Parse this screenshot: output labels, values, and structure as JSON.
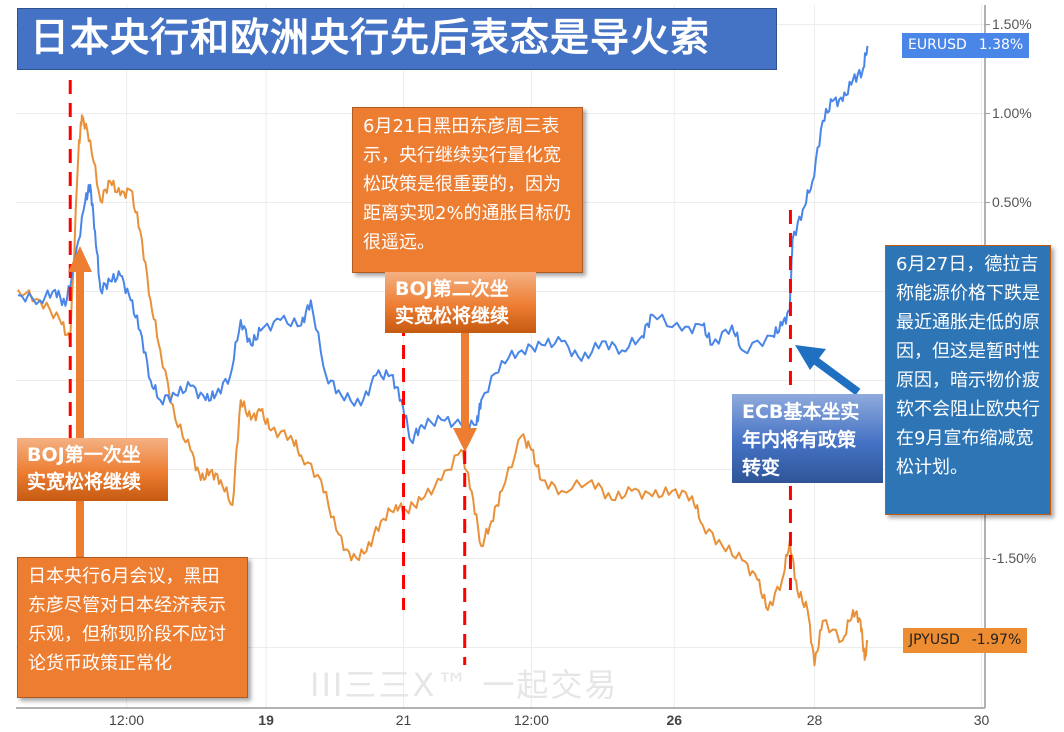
{
  "title": "日本央行和欧洲央行先后表态是导火索",
  "colors": {
    "eurusd": "#4A86E8",
    "jpyusd": "#E8913A",
    "marker": "#FF0000",
    "orange_box": "#ED7D31",
    "blue_box": "#2E75B6",
    "title_bg": "#4472C4"
  },
  "watermark": {
    "logo": "III三三X™",
    "text": "一起交易"
  },
  "annotations": {
    "boj_meeting": "日本央行6月会议，黑田东彦尽管对日本经济表示乐观，但称现阶段不应讨论货币政策正常化",
    "boj_first": "BOJ第一次坐实宽松将继续",
    "kuroda_june21": "6月21日黑田东彦周三表示，央行继续实行量化宽松政策是很重要的，因为距离实现2%的通胀目标仍很遥远。",
    "boj_second": "BOJ第二次坐实宽松将继续",
    "ecb_label": "ECB基本坐实年内将有政策转变",
    "draghi_june27": "6月27日，德拉吉称能源价格下跌是最近通胀走低的原因，但这是暂时性原因，暗示物价疲软不会阻止欧央行在9月宣布缩减宽松计划。"
  },
  "chart_data": {
    "type": "line",
    "title": "日本央行和欧洲央行先后表态是导火索",
    "xlabel": "",
    "ylabel": "",
    "xlim": [
      0,
      14.1
    ],
    "ylim": [
      -2.34,
      1.61
    ],
    "grid": true,
    "x_ticks": [
      {
        "label": "12:00",
        "t": 1.58,
        "bold": false
      },
      {
        "label": "19",
        "t": 3.61,
        "bold": true
      },
      {
        "label": "21",
        "t": 5.61,
        "bold": false
      },
      {
        "label": "12:00",
        "t": 7.47,
        "bold": false
      },
      {
        "label": "26",
        "t": 9.55,
        "bold": true
      },
      {
        "label": "28",
        "t": 11.59,
        "bold": false
      },
      {
        "label": "30",
        "t": 14.02,
        "bold": false
      }
    ],
    "y_gridlines": [
      1.5,
      1.0,
      0.5,
      0.0,
      -0.5,
      -1.0,
      -1.5,
      -2.0
    ],
    "y_tick_labels": [
      {
        "label": "1.50%",
        "v": 1.5
      },
      {
        "label": "1.00%",
        "v": 1.0
      },
      {
        "label": "0.50%",
        "v": 0.5
      },
      {
        "label": "-1.50%",
        "v": -1.5
      }
    ],
    "event_markers_t": [
      0.76,
      5.61,
      6.5,
      11.24
    ],
    "series": [
      {
        "name": "EURUSD",
        "last_label": "1.38%",
        "last": 1.38,
        "t": [
          0,
          0.32,
          0.54,
          0.69,
          0.83,
          0.98,
          1.05,
          1.12,
          1.2,
          1.34,
          1.49,
          1.64,
          1.78,
          1.93,
          2.07,
          2.29,
          2.51,
          2.73,
          2.88,
          3.09,
          3.24,
          3.39,
          3.53,
          3.82,
          4.12,
          4.26,
          4.48,
          4.7,
          4.99,
          5.21,
          5.43,
          5.58,
          5.72,
          5.87,
          6.16,
          6.45,
          6.67,
          6.74,
          7.04,
          7.33,
          7.62,
          7.91,
          8.2,
          8.5,
          8.79,
          9.08,
          9.23,
          9.66,
          9.96,
          10.1,
          10.39,
          10.54,
          10.98,
          11.12,
          11.23,
          11.27,
          11.42,
          11.56,
          11.71,
          11.85,
          12.0,
          12.15,
          12.29,
          12.36
        ],
        "v": [
          -0.02,
          -0.05,
          0.01,
          -0.08,
          0.17,
          0.51,
          0.6,
          0.34,
          0.01,
          0.06,
          0.09,
          -0.05,
          -0.22,
          -0.5,
          -0.61,
          -0.58,
          -0.53,
          -0.61,
          -0.58,
          -0.47,
          -0.16,
          -0.3,
          -0.22,
          -0.16,
          -0.19,
          -0.05,
          -0.47,
          -0.58,
          -0.64,
          -0.47,
          -0.47,
          -0.61,
          -0.84,
          -0.75,
          -0.72,
          -0.75,
          -0.75,
          -0.61,
          -0.39,
          -0.33,
          -0.3,
          -0.28,
          -0.39,
          -0.28,
          -0.33,
          -0.25,
          -0.13,
          -0.22,
          -0.19,
          -0.3,
          -0.19,
          -0.33,
          -0.25,
          -0.19,
          -0.11,
          0.29,
          0.46,
          0.62,
          0.96,
          1.07,
          1.07,
          1.19,
          1.24,
          1.38
        ]
      },
      {
        "name": "JPYUSD",
        "last_label": "-1.97%",
        "last": -1.97,
        "t": [
          0,
          0.32,
          0.61,
          0.76,
          0.88,
          0.93,
          1.05,
          1.2,
          1.34,
          1.49,
          1.64,
          1.78,
          1.93,
          2.07,
          2.29,
          2.51,
          2.66,
          2.8,
          2.95,
          3.12,
          3.24,
          3.39,
          3.53,
          3.68,
          3.97,
          4.12,
          4.41,
          4.63,
          4.85,
          5.07,
          5.28,
          5.5,
          5.65,
          5.87,
          6.16,
          6.45,
          6.6,
          6.74,
          6.89,
          7.04,
          7.33,
          7.47,
          7.62,
          7.91,
          8.35,
          8.64,
          8.93,
          9.23,
          9.52,
          9.81,
          9.96,
          10.25,
          10.54,
          10.76,
          10.91,
          11.12,
          11.23,
          11.34,
          11.49,
          11.59,
          11.71,
          12.0,
          12.15,
          12.26,
          12.32,
          12.36
        ],
        "v": [
          0.01,
          -0.05,
          -0.16,
          -0.28,
          0.79,
          0.99,
          0.85,
          0.51,
          0.62,
          0.54,
          0.57,
          0.34,
          -0.05,
          -0.33,
          -0.72,
          -0.89,
          -1.06,
          -1.01,
          -1.06,
          -1.2,
          -0.61,
          -0.72,
          -0.67,
          -0.78,
          -0.81,
          -0.92,
          -1.06,
          -1.34,
          -1.51,
          -1.46,
          -1.29,
          -1.2,
          -1.23,
          -1.17,
          -1.06,
          -0.89,
          -1.12,
          -1.43,
          -1.29,
          -1.12,
          -0.81,
          -0.89,
          -1.06,
          -1.12,
          -1.06,
          -1.17,
          -1.12,
          -1.15,
          -1.12,
          -1.15,
          -1.31,
          -1.43,
          -1.51,
          -1.62,
          -1.79,
          -1.62,
          -1.4,
          -1.68,
          -1.79,
          -2.1,
          -1.85,
          -1.96,
          -1.79,
          -1.85,
          -2.07,
          -1.97
        ]
      }
    ]
  }
}
